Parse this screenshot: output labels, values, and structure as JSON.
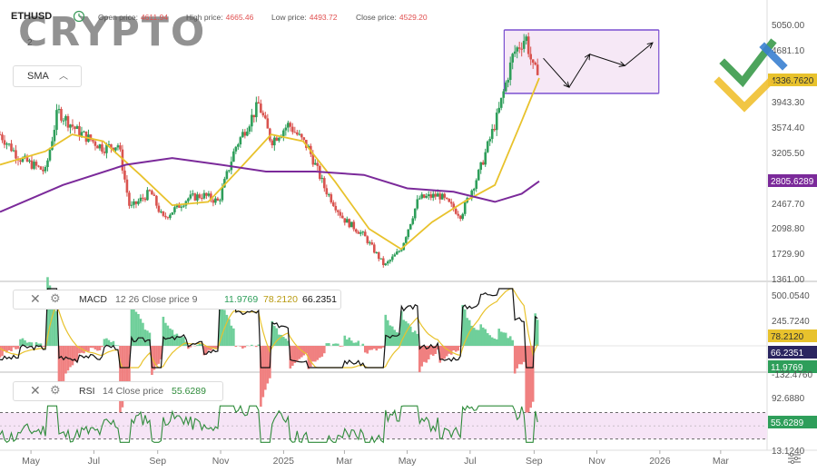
{
  "header": {
    "symbol": "ETHUSD",
    "open_label": "Open price:",
    "open_value": "4611.94",
    "high_label": "High price:",
    "high_value": "4665.46",
    "low_label": "Low price:",
    "low_value": "4493.72",
    "close_label": "Close price:",
    "close_value": "4529.20",
    "sub_value": "2"
  },
  "watermark": "CRYPTO",
  "overlay_indicator": {
    "name": "SMA"
  },
  "macd_panel": {
    "name": "MACD",
    "params": "12 26 Close price 9",
    "v1": "11.9769",
    "v2": "78.2120",
    "v3": "66.2351"
  },
  "rsi_panel": {
    "name": "RSI",
    "params": "14 Close price",
    "v1": "55.6289"
  },
  "colors": {
    "up_candle": "#2e9e5a",
    "down_candle": "#d9534f",
    "sma_fast": "#e8c22c",
    "sma_slow": "#7b2a9a",
    "macd_line": "#111111",
    "signal_line": "#e8c22c",
    "rsi_line": "#2e8b3a",
    "rect_border": "#7a4fd0",
    "rect_fill": "#f6e8f6"
  },
  "price_axis_labels": [
    "5050.00",
    "4681.10",
    "4336.7620",
    "3943.30",
    "3574.40",
    "3205.50",
    "2805.6289",
    "2467.70",
    "2098.80",
    "1729.90",
    "1361.00"
  ],
  "price_badges": {
    "sma_fast": "4336.7620",
    "sma_slow": "2805.6289"
  },
  "macd_axis_labels": [
    "500.0540",
    "245.7240",
    "78.2120",
    "66.2351",
    "11.9769",
    "-132.4760"
  ],
  "rsi_axis_labels": [
    "92.6880",
    "55.6289",
    "13.1240"
  ],
  "date_labels": [
    "May",
    "Jul",
    "Sep",
    "Nov",
    "2025",
    "Mar",
    "May",
    "Jul",
    "Sep",
    "Nov",
    "2026",
    "Mar"
  ],
  "chart_data": {
    "type": "line",
    "series_type": "candlestick",
    "x_range": [
      "2024-04",
      "2026-03"
    ],
    "y_range": [
      1361.0,
      5050.0
    ],
    "close_series": [
      {
        "date": "2024-04-01",
        "close": 3500
      },
      {
        "date": "2024-04-20",
        "close": 3150
      },
      {
        "date": "2024-05-15",
        "close": 2950
      },
      {
        "date": "2024-05-27",
        "close": 3850
      },
      {
        "date": "2024-06-15",
        "close": 3550
      },
      {
        "date": "2024-07-10",
        "close": 3300
      },
      {
        "date": "2024-07-25",
        "close": 3350
      },
      {
        "date": "2024-08-05",
        "close": 2400
      },
      {
        "date": "2024-08-25",
        "close": 2650
      },
      {
        "date": "2024-09-06",
        "close": 2250
      },
      {
        "date": "2024-09-30",
        "close": 2550
      },
      {
        "date": "2024-10-15",
        "close": 2600
      },
      {
        "date": "2024-10-30",
        "close": 2500
      },
      {
        "date": "2024-11-15",
        "close": 3300
      },
      {
        "date": "2024-12-08",
        "close": 3950
      },
      {
        "date": "2024-12-20",
        "close": 3400
      },
      {
        "date": "2025-01-06",
        "close": 3650
      },
      {
        "date": "2025-01-25",
        "close": 3300
      },
      {
        "date": "2025-02-10",
        "close": 2700
      },
      {
        "date": "2025-02-28",
        "close": 2250
      },
      {
        "date": "2025-03-20",
        "close": 2000
      },
      {
        "date": "2025-04-09",
        "close": 1550
      },
      {
        "date": "2025-04-25",
        "close": 1800
      },
      {
        "date": "2025-05-12",
        "close": 2550
      },
      {
        "date": "2025-06-01",
        "close": 2600
      },
      {
        "date": "2025-06-22",
        "close": 2300
      },
      {
        "date": "2025-07-10",
        "close": 2950
      },
      {
        "date": "2025-07-28",
        "close": 3800
      },
      {
        "date": "2025-08-12",
        "close": 4700
      },
      {
        "date": "2025-08-24",
        "close": 4950
      },
      {
        "date": "2025-09-01",
        "close": 4400
      },
      {
        "date": "2025-09-06",
        "close": 4529
      }
    ],
    "sma_fast": [
      {
        "date": "2024-04-01",
        "value": 3050
      },
      {
        "date": "2024-05-15",
        "value": 3250
      },
      {
        "date": "2024-06-10",
        "value": 3500
      },
      {
        "date": "2024-07-10",
        "value": 3400
      },
      {
        "date": "2024-08-15",
        "value": 2900
      },
      {
        "date": "2024-09-15",
        "value": 2450
      },
      {
        "date": "2024-10-20",
        "value": 2500
      },
      {
        "date": "2024-11-20",
        "value": 3000
      },
      {
        "date": "2024-12-20",
        "value": 3500
      },
      {
        "date": "2025-01-20",
        "value": 3400
      },
      {
        "date": "2025-02-20",
        "value": 2800
      },
      {
        "date": "2025-03-25",
        "value": 2100
      },
      {
        "date": "2025-04-25",
        "value": 1800
      },
      {
        "date": "2025-05-25",
        "value": 2200
      },
      {
        "date": "2025-06-25",
        "value": 2500
      },
      {
        "date": "2025-07-25",
        "value": 2750
      },
      {
        "date": "2025-08-20",
        "value": 3700
      },
      {
        "date": "2025-09-06",
        "value": 4337
      }
    ],
    "sma_slow": [
      {
        "date": "2024-04-01",
        "value": 2350
      },
      {
        "date": "2024-06-01",
        "value": 2750
      },
      {
        "date": "2024-08-01",
        "value": 3050
      },
      {
        "date": "2024-09-15",
        "value": 3150
      },
      {
        "date": "2024-11-01",
        "value": 3050
      },
      {
        "date": "2024-12-15",
        "value": 2950
      },
      {
        "date": "2025-02-01",
        "value": 2950
      },
      {
        "date": "2025-03-20",
        "value": 2900
      },
      {
        "date": "2025-05-01",
        "value": 2700
      },
      {
        "date": "2025-06-15",
        "value": 2650
      },
      {
        "date": "2025-07-25",
        "value": 2500
      },
      {
        "date": "2025-08-20",
        "value": 2620
      },
      {
        "date": "2025-09-06",
        "value": 2806
      }
    ],
    "projection_rectangle": {
      "x_start": "2025-08-03",
      "x_end": "2025-12-31",
      "y_low": 4110,
      "y_high": 5050
    },
    "projection_path": [
      {
        "date": "2025-09-10",
        "value": 4630
      },
      {
        "date": "2025-10-05",
        "value": 4200
      },
      {
        "date": "2025-10-25",
        "value": 4690
      },
      {
        "date": "2025-11-28",
        "value": 4520
      },
      {
        "date": "2025-12-25",
        "value": 4860
      }
    ],
    "macd": {
      "macd": 66.2351,
      "signal": 78.212,
      "histogram": 11.9769,
      "params": "12 26 Close price 9"
    },
    "rsi": {
      "value": 55.6289,
      "params": "14 Close price",
      "range": [
        13.124,
        92.688
      ]
    }
  }
}
